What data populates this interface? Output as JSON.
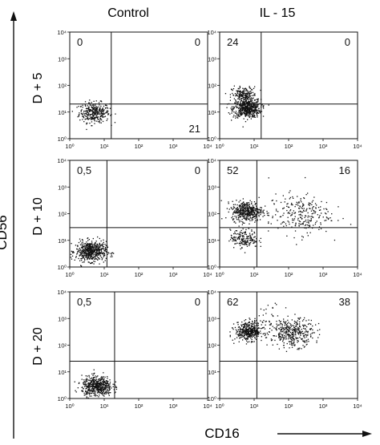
{
  "col_labels": [
    "Control",
    "IL - 15"
  ],
  "row_labels": [
    "D + 5",
    "D + 10",
    "D + 20"
  ],
  "y_axis_label": "CD56",
  "x_axis_label": "CD16",
  "tick_labels": [
    "10⁰",
    "10¹",
    "10²",
    "10³",
    "10⁴"
  ],
  "colors": {
    "ink": "#111111",
    "bg": "#ffffff"
  },
  "chart_data": [
    {
      "type": "scatter",
      "row": "D + 5",
      "column": "Control",
      "xlabel": "",
      "ylabel": "",
      "xscale": "log",
      "yscale": "log",
      "xlim": [
        1,
        10000
      ],
      "ylim": [
        1,
        10000
      ],
      "gate": {
        "x": 16,
        "y": 20
      },
      "quadrant_percentages": {
        "upper_left": "0",
        "upper_right": "0",
        "lower_left": "",
        "lower_right": "21"
      },
      "populations": [
        {
          "cd16": 5,
          "cd56": 10,
          "spread": 0.22,
          "count": 320
        }
      ]
    },
    {
      "type": "scatter",
      "row": "D + 5",
      "column": "IL - 15",
      "xlabel": "",
      "ylabel": "",
      "xscale": "log",
      "yscale": "log",
      "xlim": [
        1,
        10000
      ],
      "ylim": [
        1,
        10000
      ],
      "gate": {
        "x": 16,
        "y": 20
      },
      "quadrant_percentages": {
        "upper_left": "24",
        "upper_right": "0",
        "lower_left": "",
        "lower_right": ""
      },
      "populations": [
        {
          "cd16": 6,
          "cd56": 14,
          "spread": 0.2,
          "count": 520
        },
        {
          "cd16": 5,
          "cd56": 45,
          "spread": 0.18,
          "count": 200
        }
      ]
    },
    {
      "type": "scatter",
      "row": "D + 10",
      "column": "Control",
      "xlabel": "",
      "ylabel": "",
      "xscale": "log",
      "yscale": "log",
      "xlim": [
        1,
        10000
      ],
      "ylim": [
        1,
        10000
      ],
      "gate": {
        "x": 12,
        "y": 30
      },
      "quadrant_percentages": {
        "upper_left": "0,5",
        "upper_right": "0",
        "lower_left": "",
        "lower_right": ""
      },
      "populations": [
        {
          "cd16": 4,
          "cd56": 4,
          "spread": 0.22,
          "count": 560
        }
      ]
    },
    {
      "type": "scatter",
      "row": "D + 10",
      "column": "IL - 15",
      "xlabel": "",
      "ylabel": "",
      "xscale": "log",
      "yscale": "log",
      "xlim": [
        1,
        10000
      ],
      "ylim": [
        1,
        10000
      ],
      "gate": {
        "x": 12,
        "y": 30
      },
      "quadrant_percentages": {
        "upper_left": "52",
        "upper_right": "16",
        "lower_left": "",
        "lower_right": ""
      },
      "populations": [
        {
          "cd16": 6,
          "cd56": 130,
          "spread": 0.22,
          "count": 430
        },
        {
          "cd16": 200,
          "cd56": 100,
          "spread": 0.45,
          "count": 260
        },
        {
          "cd16": 5,
          "cd56": 12,
          "spread": 0.2,
          "count": 180
        }
      ]
    },
    {
      "type": "scatter",
      "row": "D + 20",
      "column": "Control",
      "xlabel": "",
      "ylabel": "",
      "xscale": "log",
      "yscale": "log",
      "xlim": [
        1,
        10000
      ],
      "ylim": [
        1,
        10000
      ],
      "gate": {
        "x": 20,
        "y": 25
      },
      "quadrant_percentages": {
        "upper_left": "0,5",
        "upper_right": "0",
        "lower_left": "",
        "lower_right": ""
      },
      "populations": [
        {
          "cd16": 6,
          "cd56": 3,
          "spread": 0.22,
          "count": 520
        }
      ]
    },
    {
      "type": "scatter",
      "row": "D + 20",
      "column": "IL - 15",
      "xlabel": "",
      "ylabel": "",
      "xscale": "log",
      "yscale": "log",
      "xlim": [
        1,
        10000
      ],
      "ylim": [
        1,
        10000
      ],
      "gate": {
        "x": 12,
        "y": 25
      },
      "quadrant_percentages": {
        "upper_left": "62",
        "upper_right": "38",
        "lower_left": "",
        "lower_right": ""
      },
      "populations": [
        {
          "cd16": 7,
          "cd56": 350,
          "spread": 0.2,
          "count": 420
        },
        {
          "cd16": 130,
          "cd56": 300,
          "spread": 0.3,
          "count": 360
        },
        {
          "cd16": 40,
          "cd56": 1000,
          "spread": 0.35,
          "count": 40
        }
      ]
    }
  ]
}
